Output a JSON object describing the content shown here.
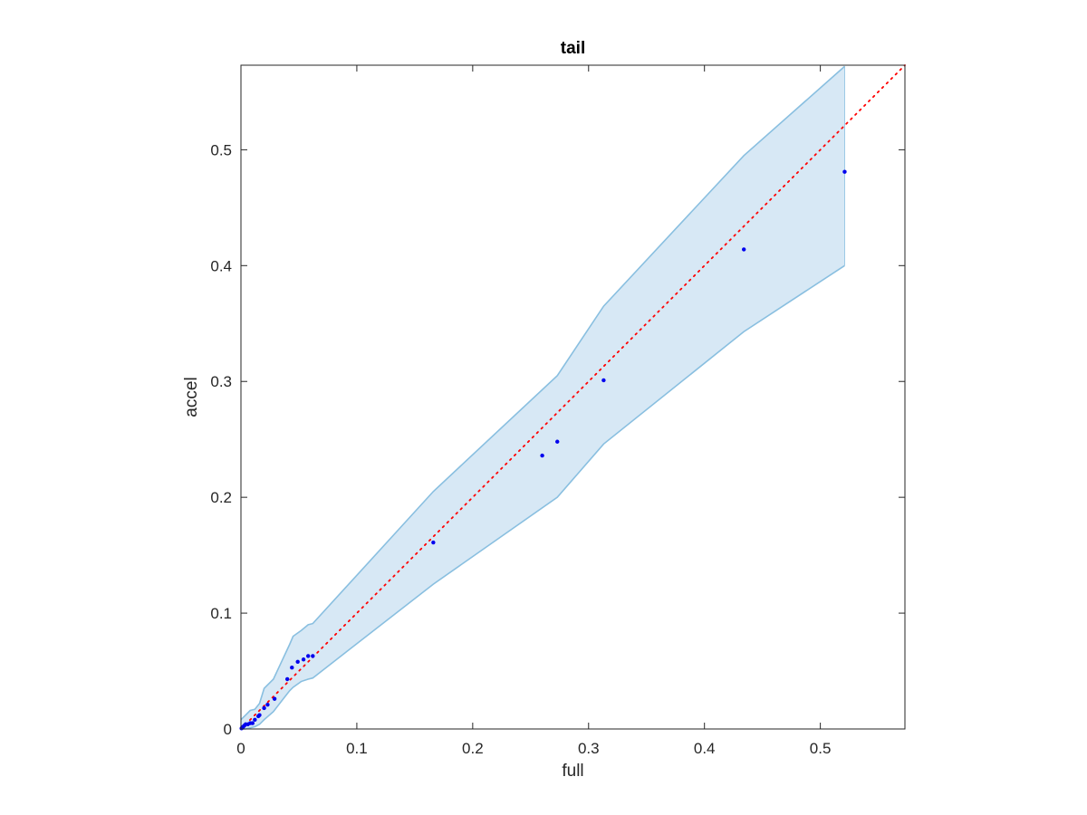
{
  "chart_data": {
    "type": "scatter",
    "title": "tail",
    "xlabel": "full",
    "ylabel": "accel",
    "xlim": [
      0,
      0.573
    ],
    "ylim": [
      0,
      0.573
    ],
    "xticks": [
      0,
      0.1,
      0.2,
      0.3,
      0.4,
      0.5
    ],
    "yticks": [
      0,
      0.1,
      0.2,
      0.3,
      0.4,
      0.5
    ],
    "xtick_labels": [
      "0",
      "0.1",
      "0.2",
      "0.3",
      "0.4",
      "0.5"
    ],
    "ytick_labels": [
      "0",
      "0.1",
      "0.2",
      "0.3",
      "0.4",
      "0.5"
    ],
    "grid": false,
    "colors": {
      "points": "#0000ee",
      "reference_line": "#ff0000",
      "band_fill": "#d7e8f5",
      "band_edge": "#89bfe0",
      "axes": "#262626"
    },
    "band_upper": [
      [
        0,
        0.008
      ],
      [
        0.002,
        0.01
      ],
      [
        0.004,
        0.012
      ],
      [
        0.008,
        0.016
      ],
      [
        0.012,
        0.017
      ],
      [
        0.016,
        0.022
      ],
      [
        0.02,
        0.035
      ],
      [
        0.028,
        0.043
      ],
      [
        0.035,
        0.058
      ],
      [
        0.042,
        0.073
      ],
      [
        0.045,
        0.08
      ],
      [
        0.052,
        0.085
      ],
      [
        0.058,
        0.09
      ],
      [
        0.062,
        0.091
      ],
      [
        0.166,
        0.205
      ],
      [
        0.273,
        0.305
      ],
      [
        0.313,
        0.365
      ],
      [
        0.434,
        0.495
      ],
      [
        0.521,
        0.572
      ]
    ],
    "band_lower": [
      [
        0,
        0.0
      ],
      [
        0.004,
        0.0
      ],
      [
        0.008,
        0.001
      ],
      [
        0.012,
        0.002
      ],
      [
        0.016,
        0.004
      ],
      [
        0.02,
        0.008
      ],
      [
        0.028,
        0.015
      ],
      [
        0.035,
        0.024
      ],
      [
        0.042,
        0.033
      ],
      [
        0.045,
        0.036
      ],
      [
        0.052,
        0.041
      ],
      [
        0.058,
        0.043
      ],
      [
        0.062,
        0.044
      ],
      [
        0.166,
        0.125
      ],
      [
        0.273,
        0.2
      ],
      [
        0.313,
        0.246
      ],
      [
        0.434,
        0.343
      ],
      [
        0.521,
        0.4
      ]
    ],
    "points": [
      [
        0.0005,
        0.0005
      ],
      [
        0.001,
        0.001
      ],
      [
        0.0015,
        0.0015
      ],
      [
        0.002,
        0.002
      ],
      [
        0.003,
        0.003
      ],
      [
        0.004,
        0.004
      ],
      [
        0.006,
        0.004
      ],
      [
        0.008,
        0.005
      ],
      [
        0.01,
        0.005
      ],
      [
        0.012,
        0.008
      ],
      [
        0.015,
        0.011
      ],
      [
        0.016,
        0.012
      ],
      [
        0.02,
        0.018
      ],
      [
        0.023,
        0.021
      ],
      [
        0.029,
        0.026
      ],
      [
        0.04,
        0.043
      ],
      [
        0.044,
        0.053
      ],
      [
        0.049,
        0.058
      ],
      [
        0.054,
        0.06
      ],
      [
        0.058,
        0.063
      ],
      [
        0.062,
        0.063
      ],
      [
        0.166,
        0.161
      ],
      [
        0.26,
        0.236
      ],
      [
        0.273,
        0.248
      ],
      [
        0.313,
        0.301
      ],
      [
        0.434,
        0.414
      ],
      [
        0.521,
        0.481
      ]
    ],
    "reference_line": [
      [
        0,
        0
      ],
      [
        0.573,
        0.573
      ]
    ]
  }
}
